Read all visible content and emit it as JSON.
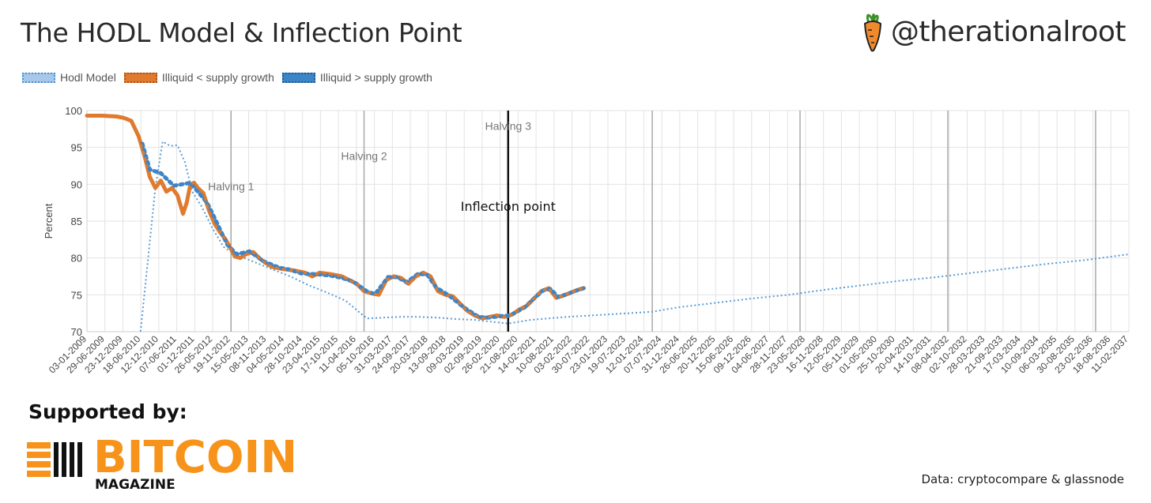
{
  "header": {
    "title": "The HODL Model & Inflection Point",
    "handle": "@therationalroot"
  },
  "legend": [
    {
      "label": "Hodl Model",
      "color": "#a8c8ea",
      "border": "#4a90d0"
    },
    {
      "label": "Illiquid < supply growth",
      "color": "#e07a2e",
      "border": "#c8601a"
    },
    {
      "label": "Illiquid > supply growth",
      "color": "#3d85c6",
      "border": "#2a6aa8"
    }
  ],
  "footer": {
    "supported_by": "Supported by:",
    "logo_main": "BITCOIN",
    "logo_sub": "MAGAZINE",
    "source": "Data: cryptocompare & glassnode"
  },
  "colors": {
    "orange": "#e07a2e",
    "blue": "#3d85c6",
    "model": "#5b9bd5",
    "logo": "#f7931a"
  },
  "chart_data": {
    "type": "line",
    "ylabel": "Percent",
    "ylim": [
      70,
      100
    ],
    "yticks": [
      70,
      75,
      80,
      85,
      90,
      95,
      100
    ],
    "grid": true,
    "xlim": [
      2009.0,
      2037.2
    ],
    "x_tick_labels": [
      "03-01-2009",
      "29-06-2009",
      "23-12-2009",
      "18-06-2010",
      "12-12-2010",
      "07-06-2011",
      "01-12-2011",
      "26-05-2012",
      "19-11-2012",
      "15-05-2013",
      "08-11-2013",
      "04-05-2014",
      "28-10-2014",
      "23-04-2015",
      "17-10-2015",
      "11-04-2016",
      "05-10-2016",
      "31-03-2017",
      "24-09-2017",
      "20-03-2018",
      "13-09-2018",
      "09-03-2019",
      "02-09-2019",
      "26-02-2020",
      "21-08-2020",
      "14-02-2021",
      "10-08-2021",
      "03-02-2022",
      "30-07-2022",
      "23-01-2023",
      "19-07-2023",
      "12-01-2024",
      "07-07-2024",
      "31-12-2024",
      "26-06-2025",
      "20-12-2025",
      "15-06-2026",
      "09-12-2026",
      "04-06-2027",
      "28-11-2027",
      "23-05-2028",
      "16-11-2028",
      "12-05-2029",
      "05-11-2029",
      "01-05-2030",
      "25-10-2030",
      "20-04-2031",
      "14-10-2031",
      "08-04-2032",
      "02-10-2032",
      "28-03-2033",
      "21-09-2033",
      "17-03-2034",
      "10-09-2034",
      "06-03-2035",
      "30-08-2035",
      "23-02-2036",
      "18-08-2036",
      "11-02-2037"
    ],
    "vertical_lines": [
      2012.9,
      2016.5,
      2020.4,
      2024.3,
      2028.3,
      2032.3,
      2036.3
    ],
    "annotations": [
      {
        "text": "Halving 1",
        "x": 2012.9,
        "y": 89.2
      },
      {
        "text": "Halving 2",
        "x": 2016.5,
        "y": 93.3
      },
      {
        "text": "Halving 3",
        "x": 2020.4,
        "y": 97.4
      },
      {
        "text": "Inflection point",
        "x": 2020.4,
        "y": 86.4
      }
    ],
    "inflection_x": 2020.4,
    "series": [
      {
        "name": "Hodl Model",
        "style": "dotted",
        "points": [
          [
            2010.45,
            70
          ],
          [
            2010.85,
            89.5
          ],
          [
            2011.05,
            95.8
          ],
          [
            2011.25,
            95.2
          ],
          [
            2011.45,
            95.3
          ],
          [
            2011.65,
            93
          ],
          [
            2011.85,
            89
          ],
          [
            2012.1,
            87
          ],
          [
            2012.4,
            84
          ],
          [
            2012.7,
            81.5
          ],
          [
            2013.0,
            80.5
          ],
          [
            2013.5,
            79.5
          ],
          [
            2014.0,
            78.5
          ],
          [
            2014.5,
            77.5
          ],
          [
            2015.0,
            76.3
          ],
          [
            2015.5,
            75.3
          ],
          [
            2016.0,
            74.2
          ],
          [
            2016.5,
            72.1
          ],
          [
            2016.6,
            71.8
          ],
          [
            2017.0,
            71.9
          ],
          [
            2017.5,
            72.0
          ],
          [
            2018.0,
            72.0
          ],
          [
            2018.5,
            71.9
          ],
          [
            2019.0,
            71.7
          ],
          [
            2019.5,
            71.6
          ],
          [
            2020.4,
            71.1
          ],
          [
            2021.0,
            71.6
          ],
          [
            2022.0,
            72.0
          ],
          [
            2023.0,
            72.3
          ],
          [
            2024.3,
            72.7
          ],
          [
            2025.0,
            73.3
          ],
          [
            2026.0,
            73.9
          ],
          [
            2027.0,
            74.5
          ],
          [
            2028.0,
            75.0
          ],
          [
            2029.0,
            75.7
          ],
          [
            2030.0,
            76.3
          ],
          [
            2031.0,
            76.9
          ],
          [
            2032.0,
            77.4
          ],
          [
            2033.0,
            78.0
          ],
          [
            2034.0,
            78.6
          ],
          [
            2035.0,
            79.2
          ],
          [
            2036.0,
            79.7
          ],
          [
            2037.2,
            80.5
          ]
        ]
      },
      {
        "name": "Illiquid < supply growth",
        "style": "dotted-thick",
        "points": [
          [
            2009.0,
            99.3
          ],
          [
            2009.4,
            99.3
          ],
          [
            2009.8,
            99.2
          ],
          [
            2010.0,
            99
          ],
          [
            2010.2,
            98.6
          ],
          [
            2010.4,
            96.5
          ],
          [
            2010.55,
            94
          ],
          [
            2010.7,
            91
          ],
          [
            2010.85,
            89.5
          ],
          [
            2011.0,
            90.5
          ],
          [
            2011.15,
            89
          ],
          [
            2011.3,
            89.5
          ],
          [
            2011.45,
            88.5
          ],
          [
            2011.6,
            86
          ],
          [
            2011.7,
            87.5
          ],
          [
            2011.8,
            90
          ],
          [
            2011.9,
            90.2
          ],
          [
            2012.0,
            89.5
          ],
          [
            2012.15,
            88.8
          ],
          [
            2012.3,
            86.5
          ],
          [
            2012.45,
            84.7
          ],
          [
            2012.6,
            83.5
          ],
          [
            2012.75,
            82.5
          ],
          [
            2012.9,
            81.2
          ],
          [
            2013.0,
            80.2
          ],
          [
            2013.15,
            80
          ],
          [
            2013.3,
            80.5
          ],
          [
            2013.5,
            80.8
          ],
          [
            2013.7,
            79.8
          ],
          [
            2014.0,
            78.8
          ],
          [
            2014.3,
            78.5
          ],
          [
            2014.6,
            78.3
          ],
          [
            2014.9,
            78.0
          ],
          [
            2015.1,
            77.5
          ],
          [
            2015.3,
            78
          ],
          [
            2015.6,
            77.8
          ],
          [
            2015.9,
            77.5
          ],
          [
            2016.1,
            77
          ],
          [
            2016.3,
            76.5
          ],
          [
            2016.5,
            75.5
          ],
          [
            2016.7,
            75.2
          ],
          [
            2016.9,
            75.0
          ],
          [
            2017.1,
            77
          ],
          [
            2017.3,
            77.5
          ],
          [
            2017.5,
            77.3
          ],
          [
            2017.7,
            76.5
          ],
          [
            2017.9,
            77.5
          ],
          [
            2018.1,
            78
          ],
          [
            2018.3,
            77.5
          ],
          [
            2018.5,
            75.5
          ],
          [
            2018.7,
            75
          ],
          [
            2018.9,
            74.8
          ],
          [
            2019.1,
            73.8
          ],
          [
            2019.3,
            72.8
          ],
          [
            2019.5,
            72.2
          ],
          [
            2019.7,
            71.8
          ],
          [
            2019.9,
            72.0
          ],
          [
            2020.1,
            72.2
          ],
          [
            2020.3,
            72.0
          ],
          [
            2020.5,
            72.3
          ],
          [
            2020.7,
            73
          ],
          [
            2020.9,
            73.5
          ],
          [
            2021.1,
            74.5
          ],
          [
            2021.3,
            75.5
          ],
          [
            2021.5,
            75.9
          ],
          [
            2021.7,
            74.6
          ],
          [
            2021.9,
            74.9
          ],
          [
            2022.1,
            75.3
          ],
          [
            2022.3,
            75.7
          ],
          [
            2022.45,
            75.9
          ]
        ]
      },
      {
        "name": "Illiquid > supply growth",
        "style": "dotted-thick",
        "points": [
          [
            2010.5,
            95.5
          ],
          [
            2010.7,
            92
          ],
          [
            2011.0,
            91.5
          ],
          [
            2011.35,
            89.8
          ],
          [
            2011.8,
            90.2
          ],
          [
            2012.25,
            87.5
          ],
          [
            2012.4,
            86
          ],
          [
            2012.8,
            81.8
          ],
          [
            2013.05,
            80.5
          ],
          [
            2013.4,
            80.9
          ],
          [
            2013.8,
            79.5
          ],
          [
            2014.2,
            78.7
          ],
          [
            2014.5,
            78.4
          ],
          [
            2014.8,
            77.9
          ],
          [
            2015.2,
            77.8
          ],
          [
            2015.6,
            77.6
          ],
          [
            2015.9,
            77.3
          ],
          [
            2016.2,
            76.8
          ],
          [
            2016.6,
            75.4
          ],
          [
            2016.8,
            75.1
          ],
          [
            2017.15,
            77.4
          ],
          [
            2017.4,
            77.4
          ],
          [
            2017.65,
            76.7
          ],
          [
            2017.95,
            77.8
          ],
          [
            2018.2,
            77.8
          ],
          [
            2018.45,
            76
          ],
          [
            2018.8,
            74.9
          ],
          [
            2019.2,
            73.3
          ],
          [
            2019.6,
            72.0
          ],
          [
            2019.85,
            71.9
          ],
          [
            2020.2,
            72.1
          ],
          [
            2020.45,
            72.2
          ],
          [
            2020.6,
            72.6
          ],
          [
            2020.85,
            73.3
          ],
          [
            2021.1,
            74.5
          ],
          [
            2021.35,
            75.6
          ],
          [
            2021.55,
            75.8
          ],
          [
            2021.75,
            74.7
          ],
          [
            2022.0,
            75.1
          ],
          [
            2022.2,
            75.5
          ],
          [
            2022.45,
            75.9
          ]
        ]
      }
    ]
  }
}
